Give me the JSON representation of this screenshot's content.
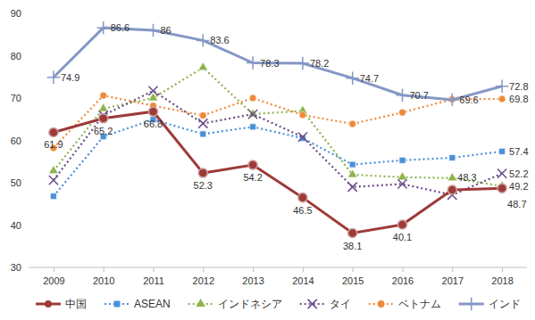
{
  "chart_data": {
    "type": "line",
    "categories": [
      "2009",
      "2010",
      "2011",
      "2012",
      "2013",
      "2014",
      "2015",
      "2016",
      "2017",
      "2018"
    ],
    "ylim": [
      30,
      90
    ],
    "yticks": [
      30,
      40,
      50,
      60,
      70,
      80,
      90
    ],
    "grid": false,
    "legend": "bottom",
    "series": [
      {
        "name": "中国",
        "color": "#9e3a38",
        "marker": "circle",
        "line_style": "solid",
        "data_labels": true,
        "values": [
          61.9,
          65.2,
          66.8,
          52.3,
          54.2,
          46.5,
          38.1,
          40.1,
          48.3,
          48.7
        ]
      },
      {
        "name": "ASEAN",
        "color": "#4a90d9",
        "marker": "square",
        "line_style": "dotted",
        "values": [
          46.8,
          60.9,
          64.9,
          61.5,
          63.2,
          60.5,
          54.3,
          55.3,
          55.9,
          57.4
        ],
        "value_labels": [
          null,
          null,
          null,
          null,
          null,
          null,
          null,
          null,
          null,
          "57.4"
        ]
      },
      {
        "name": "インドネシア",
        "color": "#8cb44c",
        "marker": "triangle",
        "line_style": "dotted",
        "values": [
          52.8,
          67.5,
          70.0,
          77.2,
          66.2,
          67.0,
          51.9,
          51.3,
          51.1,
          49.2
        ],
        "value_labels": [
          null,
          null,
          null,
          null,
          null,
          null,
          null,
          null,
          null,
          "49.2"
        ]
      },
      {
        "name": "タイ",
        "color": "#6b4c8a",
        "marker": "x",
        "line_style": "dotted",
        "values": [
          50.6,
          65.9,
          71.7,
          64.0,
          66.2,
          60.8,
          49.0,
          49.7,
          47.1,
          52.2
        ],
        "value_labels": [
          null,
          null,
          null,
          null,
          null,
          null,
          null,
          null,
          null,
          "52.2"
        ]
      },
      {
        "name": "ベトナム",
        "color": "#ee8a3a",
        "marker": "circle",
        "line_style": "dotted",
        "values": [
          58.2,
          70.6,
          68.2,
          65.9,
          70.0,
          66.0,
          63.9,
          66.6,
          69.7,
          69.8
        ],
        "value_labels": [
          null,
          null,
          null,
          null,
          null,
          null,
          null,
          null,
          null,
          "69.8"
        ]
      },
      {
        "name": "インド",
        "color": "#8497c6",
        "marker": "plus",
        "line_style": "solid",
        "data_labels": true,
        "values": [
          74.9,
          86.6,
          86.0,
          83.6,
          78.3,
          78.2,
          74.7,
          70.7,
          69.6,
          72.8
        ]
      }
    ]
  }
}
